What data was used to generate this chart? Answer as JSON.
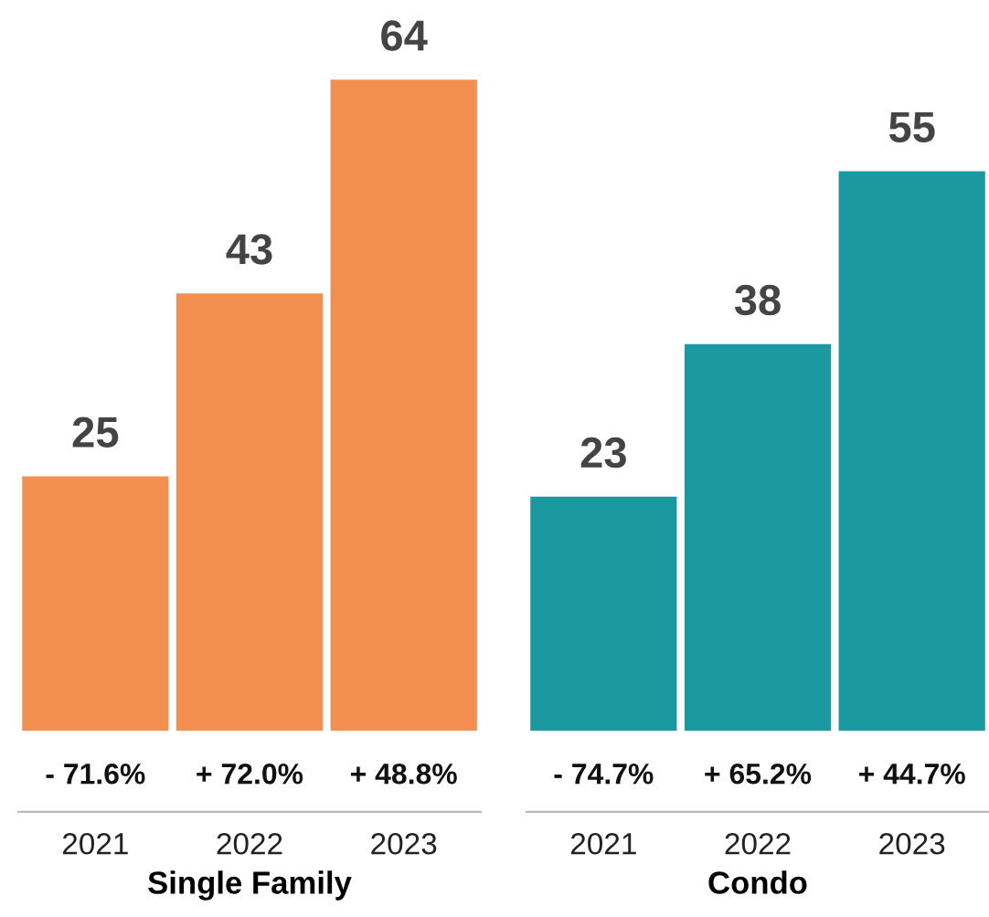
{
  "chart_data": [
    {
      "type": "bar",
      "xlabel": "Single Family",
      "categories": [
        "2021",
        "2022",
        "2023"
      ],
      "values": [
        25,
        43,
        64
      ],
      "color": "#f28f51",
      "data_labels": true,
      "annotations": [
        "- 71.6%",
        "+ 72.0%",
        "+ 48.8%"
      ]
    },
    {
      "type": "bar",
      "xlabel": "Condo",
      "categories": [
        "2021",
        "2022",
        "2023"
      ],
      "values": [
        23,
        38,
        55
      ],
      "color": "#1a9aa0",
      "data_labels": true,
      "annotations": [
        "- 74.7%",
        "+ 65.2%",
        "+ 44.7%"
      ]
    }
  ]
}
